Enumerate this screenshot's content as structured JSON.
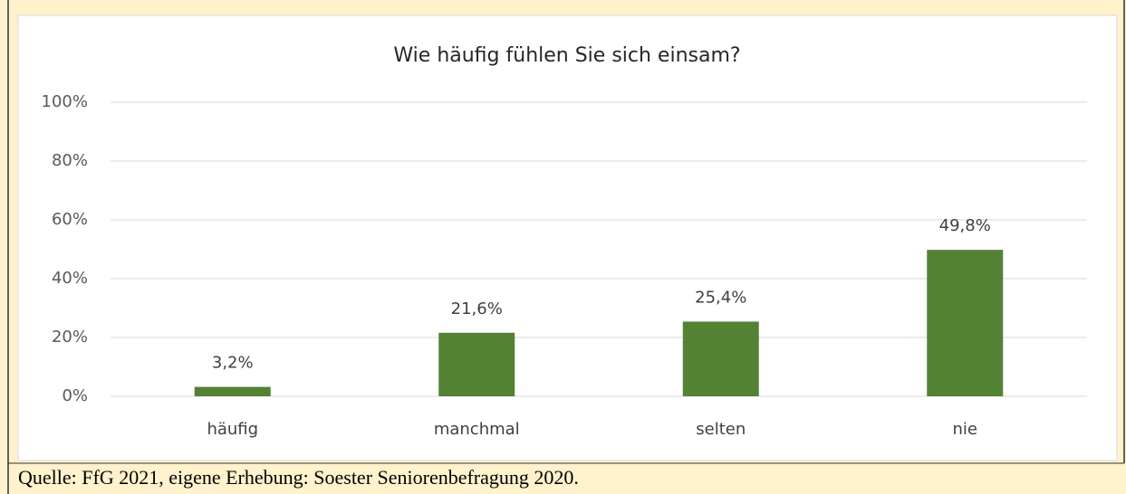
{
  "chart_data": {
    "type": "bar",
    "title": "Wie häufig fühlen Sie sich einsam?",
    "categories": [
      "häufig",
      "manchmal",
      "selten",
      "nie"
    ],
    "values": [
      3.2,
      21.6,
      25.4,
      49.8
    ],
    "value_labels": [
      "3,2%",
      "21,6%",
      "25,4%",
      "49,8%"
    ],
    "color": "#548235",
    "ylim": [
      0,
      100
    ],
    "yticks": [
      {
        "value": 0,
        "label": "0%"
      },
      {
        "value": 20,
        "label": "20%"
      },
      {
        "value": 40,
        "label": "40%"
      },
      {
        "value": 60,
        "label": "60%"
      },
      {
        "value": 80,
        "label": "80%"
      },
      {
        "value": 100,
        "label": "100%"
      }
    ],
    "grid": true,
    "source": "Quelle: FfG 2021, eigene Erhebung: Soester Seniorenbefragung 2020."
  }
}
